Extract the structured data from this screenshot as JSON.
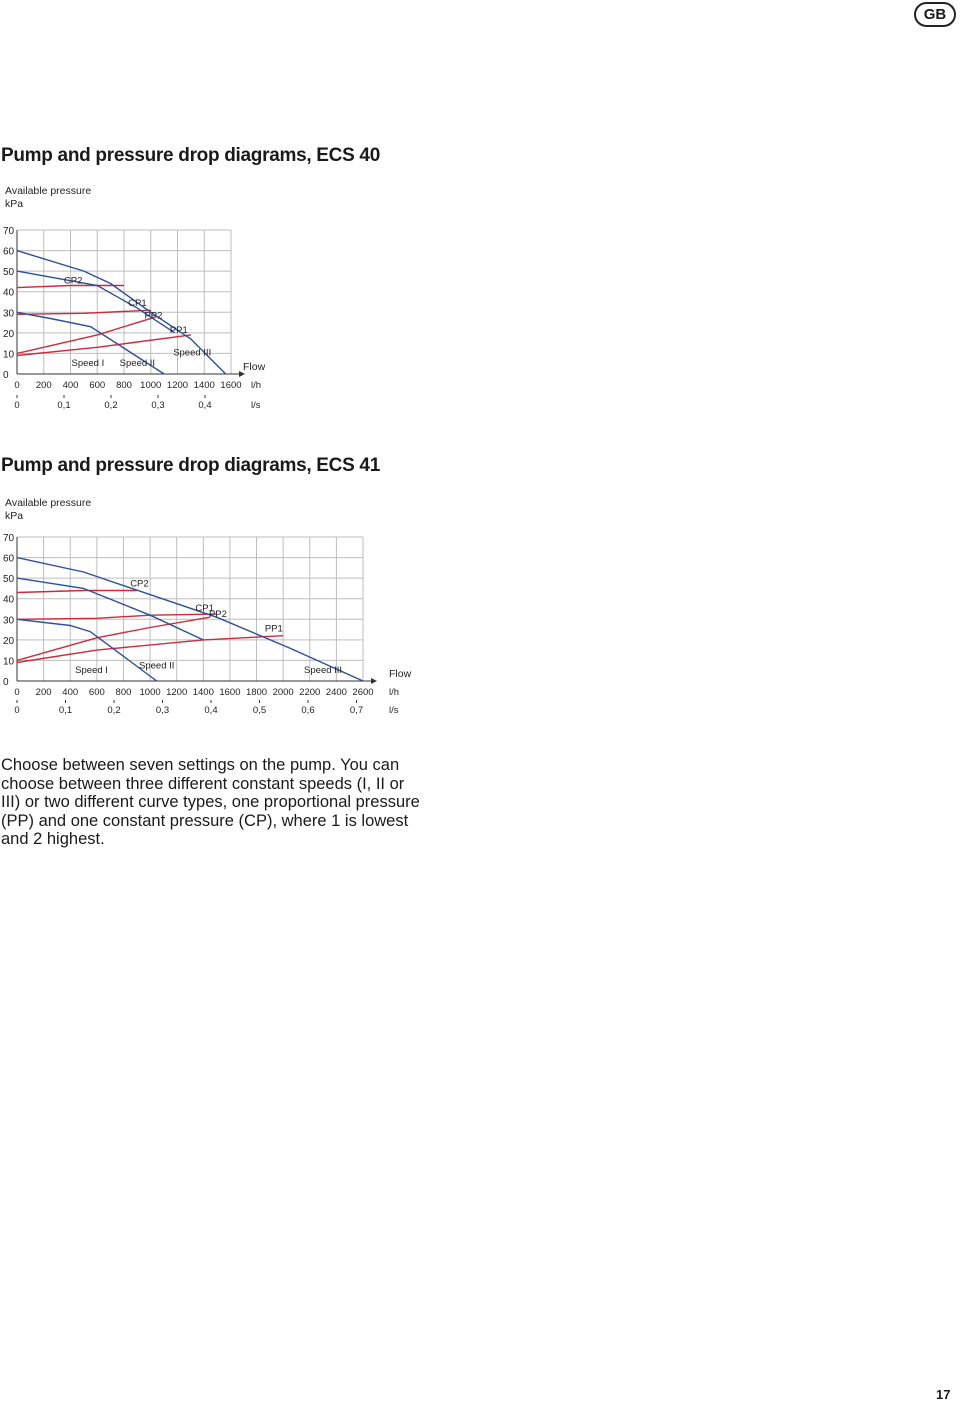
{
  "header": {
    "badge": "GB"
  },
  "section_a": {
    "title": "Pump and pressure drop diagrams, ECS 40"
  },
  "section_b": {
    "title": "Pump and pressure drop diagrams, ECS 41"
  },
  "body": {
    "paragraph": "Choose between seven settings on the pump. You can choose between three different constant speeds (I, II or III) or two different curve types, one proportional pressure (PP) and one constant pressure (CP), where 1 is lowest and 2 highest."
  },
  "footer": {
    "page_number": "17"
  },
  "colors": {
    "speed_curves": "#2b4f9e",
    "pressure_curves": "#cc2b3a",
    "grid": "#bdbdbd"
  },
  "chart_data": [
    {
      "type": "line",
      "title": "",
      "ylabel_line1": "Available pressure",
      "ylabel_line2": "kPa",
      "xlabel": "Flow",
      "x_unit": "l/h",
      "x2_unit": "l/s",
      "xlim": [
        0,
        1600
      ],
      "ylim": [
        0,
        70
      ],
      "y_ticks": [
        "70",
        "60",
        "50",
        "40",
        "30",
        "20",
        "10",
        "0"
      ],
      "x_ticks": [
        "0",
        "200",
        "400",
        "600",
        "800",
        "1000",
        "1200",
        "1400",
        "1600"
      ],
      "x2_ticks": [
        "0",
        "0,1",
        "0,2",
        "0,3",
        "0,4"
      ],
      "grid": true,
      "speed_series": [
        {
          "name": "Speed I",
          "x": [
            0,
            250,
            550,
            1100
          ],
          "y": [
            30,
            27,
            23,
            0
          ]
        },
        {
          "name": "Speed II",
          "x": [
            0,
            600,
            900,
            1180
          ],
          "y": [
            50,
            43,
            32,
            20
          ]
        },
        {
          "name": "Speed III",
          "x": [
            0,
            500,
            700,
            1000,
            1300,
            1560
          ],
          "y": [
            60,
            50,
            44,
            30,
            17,
            0
          ]
        }
      ],
      "pressure_series": [
        {
          "name": "CP2",
          "x": [
            0,
            400,
            800
          ],
          "y": [
            42,
            43,
            43
          ]
        },
        {
          "name": "CP1",
          "x": [
            0,
            500,
            1000
          ],
          "y": [
            29,
            29.5,
            31
          ]
        },
        {
          "name": "PP2",
          "x": [
            0,
            600,
            1050
          ],
          "y": [
            10,
            19,
            28
          ]
        },
        {
          "name": "PP1",
          "x": [
            0,
            600,
            1300
          ],
          "y": [
            9,
            13,
            19
          ]
        }
      ],
      "labels": [
        {
          "text": "CP2",
          "x": 420,
          "y": 44
        },
        {
          "text": "CP1",
          "x": 900,
          "y": 33
        },
        {
          "text": "PP2",
          "x": 1020,
          "y": 27
        },
        {
          "text": "PP1",
          "x": 1210,
          "y": 20
        },
        {
          "text": "Speed I",
          "x": 530,
          "y": 4
        },
        {
          "text": "Speed II",
          "x": 900,
          "y": 4
        },
        {
          "text": "Speed III",
          "x": 1310,
          "y": 9
        }
      ]
    },
    {
      "type": "line",
      "title": "",
      "ylabel_line1": "Available pressure",
      "ylabel_line2": "kPa",
      "xlabel": "Flow",
      "x_unit": "l/h",
      "x2_unit": "l/s",
      "xlim": [
        0,
        2600
      ],
      "ylim": [
        0,
        70
      ],
      "y_ticks": [
        "70",
        "60",
        "50",
        "40",
        "30",
        "20",
        "10",
        "0"
      ],
      "x_ticks": [
        "0",
        "200",
        "400",
        "600",
        "800",
        "1000",
        "1200",
        "1400",
        "1600",
        "1800",
        "2000",
        "2200",
        "2400",
        "2600"
      ],
      "x2_ticks": [
        "0",
        "0,1",
        "0,2",
        "0,3",
        "0,4",
        "0,5",
        "0,6",
        "0,7"
      ],
      "grid": true,
      "speed_series": [
        {
          "name": "Speed I",
          "x": [
            0,
            400,
            550,
            1050
          ],
          "y": [
            30,
            27,
            24,
            0
          ]
        },
        {
          "name": "Speed II",
          "x": [
            0,
            500,
            1000,
            1400
          ],
          "y": [
            50,
            45,
            32,
            20
          ]
        },
        {
          "name": "Speed III",
          "x": [
            0,
            500,
            1500,
            2050,
            2600
          ],
          "y": [
            60,
            53,
            31,
            16,
            0
          ]
        }
      ],
      "pressure_series": [
        {
          "name": "CP2",
          "x": [
            0,
            500,
            900
          ],
          "y": [
            43,
            44,
            44
          ]
        },
        {
          "name": "CP1",
          "x": [
            0,
            600,
            1000,
            1500
          ],
          "y": [
            30,
            30.5,
            32,
            32.5
          ]
        },
        {
          "name": "PP2",
          "x": [
            0,
            600,
            1000,
            1450
          ],
          "y": [
            10,
            21,
            26,
            31
          ]
        },
        {
          "name": "PP1",
          "x": [
            0,
            600,
            1400,
            2000
          ],
          "y": [
            9,
            15,
            20,
            22
          ]
        }
      ],
      "labels": [
        {
          "text": "CP2",
          "x": 920,
          "y": 46
        },
        {
          "text": "CP1",
          "x": 1410,
          "y": 34
        },
        {
          "text": "PP2",
          "x": 1510,
          "y": 31
        },
        {
          "text": "PP1",
          "x": 1930,
          "y": 24
        },
        {
          "text": "Speed I",
          "x": 560,
          "y": 4
        },
        {
          "text": "Speed II",
          "x": 1050,
          "y": 6
        },
        {
          "text": "Speed III",
          "x": 2300,
          "y": 4
        }
      ]
    }
  ]
}
